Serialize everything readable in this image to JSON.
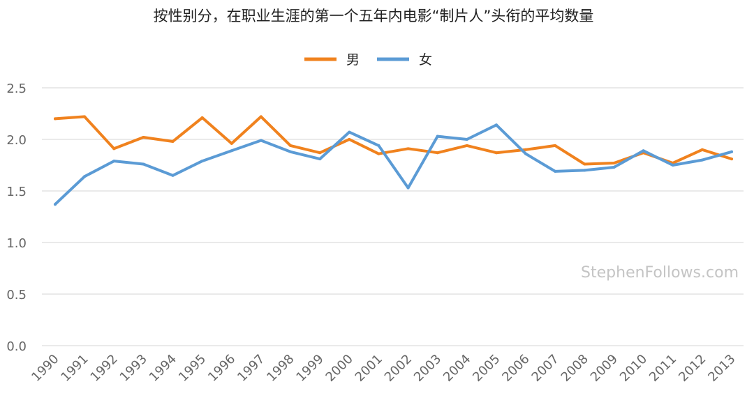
{
  "chart_data": {
    "type": "line",
    "title": "按性别分，在职业生涯的第一个五年内电影“制片人”头衔的平均数量",
    "xlabel": "",
    "ylabel": "",
    "ylim": [
      0,
      2.5
    ],
    "yticks": [
      "0.0",
      "0.5",
      "1.0",
      "1.5",
      "2.0",
      "2.5"
    ],
    "grid": true,
    "legend_position": "top-center",
    "categories": [
      "1990",
      "1991",
      "1992",
      "1993",
      "1994",
      "1995",
      "1996",
      "1997",
      "1998",
      "1999",
      "2000",
      "2001",
      "2002",
      "2003",
      "2004",
      "2005",
      "2006",
      "2007",
      "2008",
      "2009",
      "2010",
      "2011",
      "2012",
      "2013"
    ],
    "series": [
      {
        "name": "男",
        "color": "#f0821e",
        "values": [
          2.2,
          2.22,
          1.91,
          2.02,
          1.98,
          2.21,
          1.96,
          2.22,
          1.94,
          1.87,
          2.0,
          1.86,
          1.91,
          1.87,
          1.94,
          1.87,
          1.9,
          1.94,
          1.76,
          1.77,
          1.87,
          1.77,
          1.9,
          1.81
        ]
      },
      {
        "name": "女",
        "color": "#5b9bd5",
        "values": [
          1.37,
          1.64,
          1.79,
          1.76,
          1.65,
          1.79,
          1.89,
          1.99,
          1.88,
          1.81,
          2.07,
          1.94,
          1.53,
          2.03,
          2.0,
          2.14,
          1.86,
          1.69,
          1.7,
          1.73,
          1.89,
          1.75,
          1.8,
          1.88
        ]
      }
    ],
    "watermark": "StephenFollows.com"
  }
}
